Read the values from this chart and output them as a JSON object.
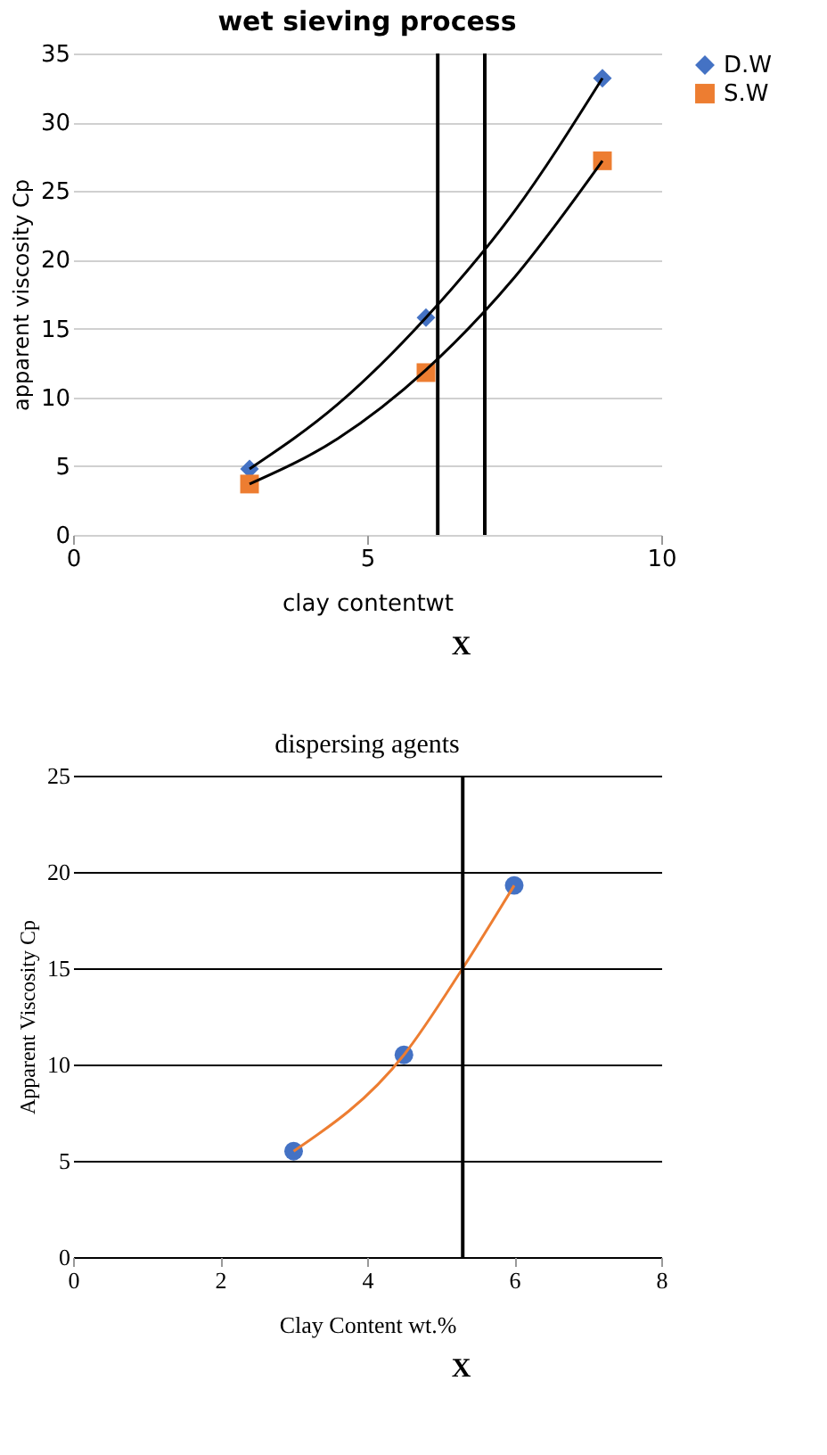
{
  "chart_data": [
    {
      "type": "scatter",
      "title": "wet sieving process",
      "xlabel": "clay contentwt",
      "ylabel": "apparent viscosity Cp",
      "xlim": [
        0,
        10
      ],
      "xticks": [
        0,
        5,
        10
      ],
      "ylim": [
        0,
        35
      ],
      "yticks": [
        0,
        5,
        10,
        15,
        20,
        25,
        30,
        35
      ],
      "grid": "y",
      "legend": "right",
      "series": [
        {
          "name": "D.W",
          "color": "#4472c4",
          "marker": "diamond",
          "x": [
            3,
            6,
            9
          ],
          "values": [
            4.8,
            15.8,
            33.2
          ]
        },
        {
          "name": "S.W",
          "color": "#ed7d31",
          "marker": "square",
          "x": [
            3,
            6,
            9
          ],
          "values": [
            3.7,
            11.8,
            27.2
          ]
        },
        {
          "type": "line",
          "color": "#000000",
          "line_style": "solid",
          "x": [
            3,
            4.5,
            6,
            7.5,
            9
          ],
          "values": [
            4.8,
            9.5,
            15.8,
            23.5,
            33.2
          ]
        },
        {
          "type": "line",
          "color": "#000000",
          "line_style": "solid",
          "x": [
            3,
            4.5,
            6,
            7.5,
            9
          ],
          "values": [
            3.7,
            7,
            12,
            18.7,
            27.2
          ]
        }
      ],
      "ref_lines": [
        {
          "axis": "x",
          "value": 6.2,
          "color": "#000000"
        },
        {
          "axis": "x",
          "value": 7,
          "color": "#000000"
        }
      ],
      "annotations": [
        "X"
      ]
    },
    {
      "type": "scatter",
      "title": "dispersing agents",
      "xlabel": "Clay Content wt.%",
      "ylabel": "Apparent Viscosity Cp",
      "xlim": [
        0,
        8
      ],
      "xticks": [
        0,
        2,
        4,
        6,
        8
      ],
      "ylim": [
        0,
        25
      ],
      "yticks": [
        0,
        5,
        10,
        15,
        20,
        25
      ],
      "grid": "y",
      "series": [
        {
          "color": "#4472c4",
          "marker": "circle",
          "x": [
            3,
            4.5,
            6
          ],
          "values": [
            5.5,
            10.5,
            19.3
          ]
        },
        {
          "type": "line",
          "color": "#ed7d31",
          "line_style": "solid",
          "x": [
            3,
            4.5,
            5.3,
            6
          ],
          "values": [
            5.5,
            10.5,
            15,
            19.3
          ]
        }
      ],
      "ref_lines": [
        {
          "axis": "x",
          "value": 5.3,
          "color": "#000000"
        }
      ],
      "annotations": [
        "X"
      ]
    }
  ]
}
